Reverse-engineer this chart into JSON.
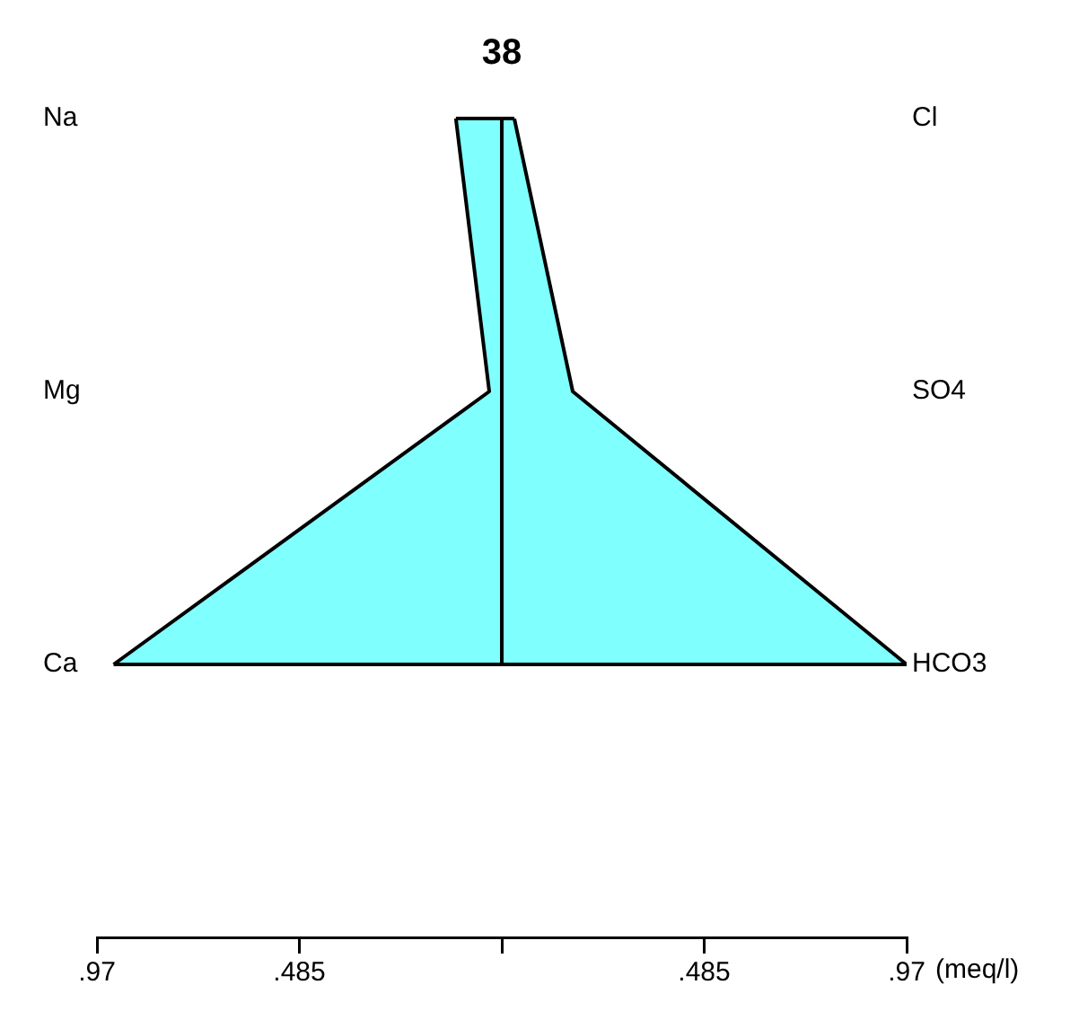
{
  "chart_data": {
    "type": "area",
    "orientation": "horizontal",
    "title": "38",
    "xlabel": "(meq/l)",
    "categories": [
      "Na",
      "Mg",
      "Ca"
    ],
    "y2_categories": [
      "Cl",
      "SO4",
      "HCO3"
    ],
    "series": [
      {
        "color": "#80ffff",
        "values": [
          -0.11,
          -0.03,
          -0.93
        ]
      },
      {
        "color": "#80ffff",
        "values": [
          0.03,
          0.17,
          0.97
        ]
      }
    ],
    "xlim": [
      -0.97,
      0.97
    ],
    "xticks": [
      {
        "value": -0.97,
        "label": ".97"
      },
      {
        "value": -0.485,
        "label": ".485"
      },
      {
        "value": 0,
        "label": null
      },
      {
        "value": 0.485,
        "label": ".485"
      },
      {
        "value": 0.97,
        "label": ".97"
      }
    ],
    "ref_lines": [
      {
        "axis": "x",
        "value": 0,
        "label": null
      }
    ],
    "grid": false,
    "legend": false,
    "marker": "none"
  }
}
